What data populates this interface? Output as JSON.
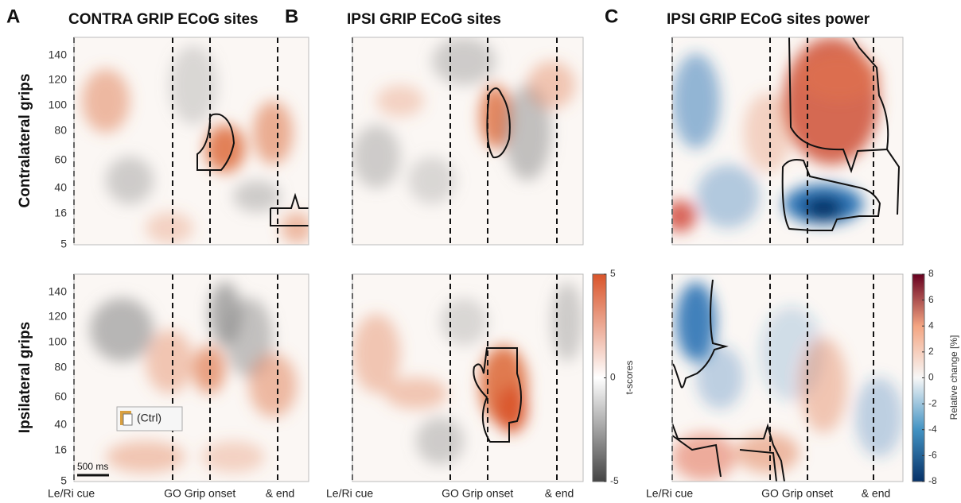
{
  "panels": [
    {
      "letter": "A",
      "title": "CONTRA GRIP ECoG sites"
    },
    {
      "letter": "B",
      "title": "IPSI GRIP ECoG sites"
    },
    {
      "letter": "C",
      "title": "IPSI GRIP ECoG sites power"
    }
  ],
  "row_labels": [
    "Contralateral grips",
    "Ipsilateral grips"
  ],
  "y_tick_labels": [
    5,
    16,
    40,
    60,
    80,
    100,
    120,
    140
  ],
  "event_labels": [
    "Le/Ri cue",
    "GO",
    "Grip onset",
    "& end"
  ],
  "scale_bar": "500 ms",
  "paste_hint": "(Ctrl)",
  "colorbar_t": {
    "label": "t-scores",
    "lim": [
      -5,
      5
    ],
    "ticks": [
      -5,
      0,
      5
    ]
  },
  "colorbar_power": {
    "label": "Relative change [%]",
    "lim": [
      -8,
      8
    ],
    "ticks": [
      -8,
      -6,
      -4,
      -2,
      0,
      2,
      4,
      6,
      8
    ]
  }
}
